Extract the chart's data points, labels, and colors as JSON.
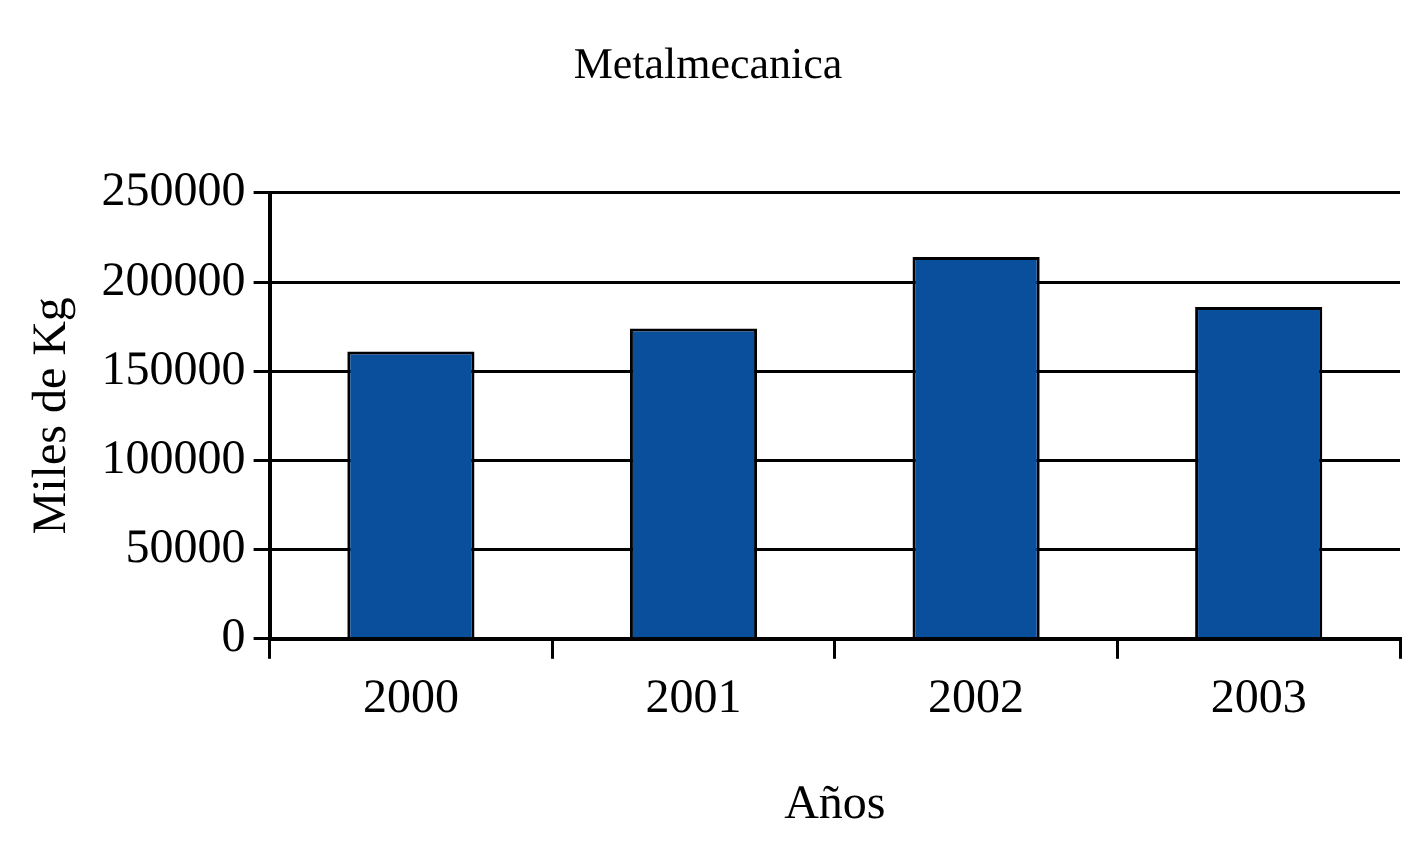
{
  "chart_data": {
    "type": "bar",
    "title": "Metalmecanica",
    "xlabel": "Años",
    "ylabel": "Miles de Kg",
    "categories": [
      "2000",
      "2001",
      "2002",
      "2003"
    ],
    "values": [
      161000,
      174000,
      214000,
      186000
    ],
    "color": "#0a4f9c",
    "ylim": [
      0,
      250000
    ],
    "yticks": [
      0,
      50000,
      100000,
      150000,
      200000,
      250000
    ],
    "grid": "y",
    "legend": false
  }
}
